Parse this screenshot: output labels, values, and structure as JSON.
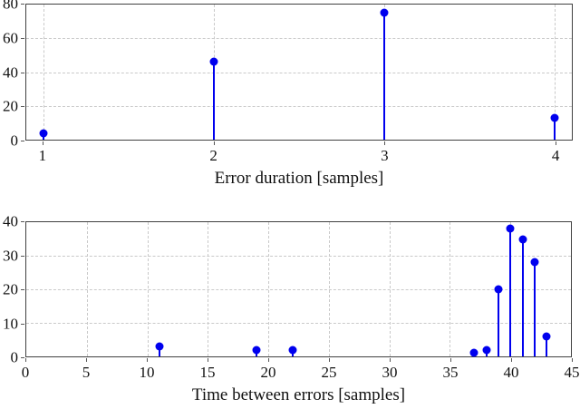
{
  "figure": {
    "background": "#ffffff"
  },
  "colors": {
    "stem": "#0000ee",
    "grid": "#c9c9c9",
    "axis": "#404040",
    "text": "#111111"
  },
  "chart_data": [
    {
      "type": "stem",
      "title": "",
      "xlabel": "Error duration [samples]",
      "ylabel": "",
      "x": [
        1,
        2,
        3,
        4
      ],
      "y": [
        4,
        46,
        75,
        13
      ],
      "xlim": [
        0.9,
        4.1
      ],
      "ylim": [
        0,
        80
      ],
      "xticks": [
        1,
        2,
        3,
        4
      ],
      "yticks": [
        0,
        20,
        40,
        60,
        80
      ],
      "grid": true,
      "legend_position": "none",
      "marker": "filled-circle"
    },
    {
      "type": "stem",
      "title": "",
      "xlabel": "Time between errors [samples]",
      "ylabel": "",
      "x": [
        11,
        19,
        22,
        37,
        38,
        39,
        40,
        41,
        42,
        43
      ],
      "y": [
        3,
        2,
        2,
        1,
        2,
        20,
        38,
        35,
        28,
        6
      ],
      "xlim": [
        0,
        45
      ],
      "ylim": [
        0,
        40
      ],
      "xticks": [
        0,
        5,
        10,
        15,
        20,
        25,
        30,
        35,
        40,
        45
      ],
      "yticks": [
        0,
        10,
        20,
        30,
        40
      ],
      "grid": true,
      "legend_position": "none",
      "marker": "filled-circle"
    }
  ]
}
